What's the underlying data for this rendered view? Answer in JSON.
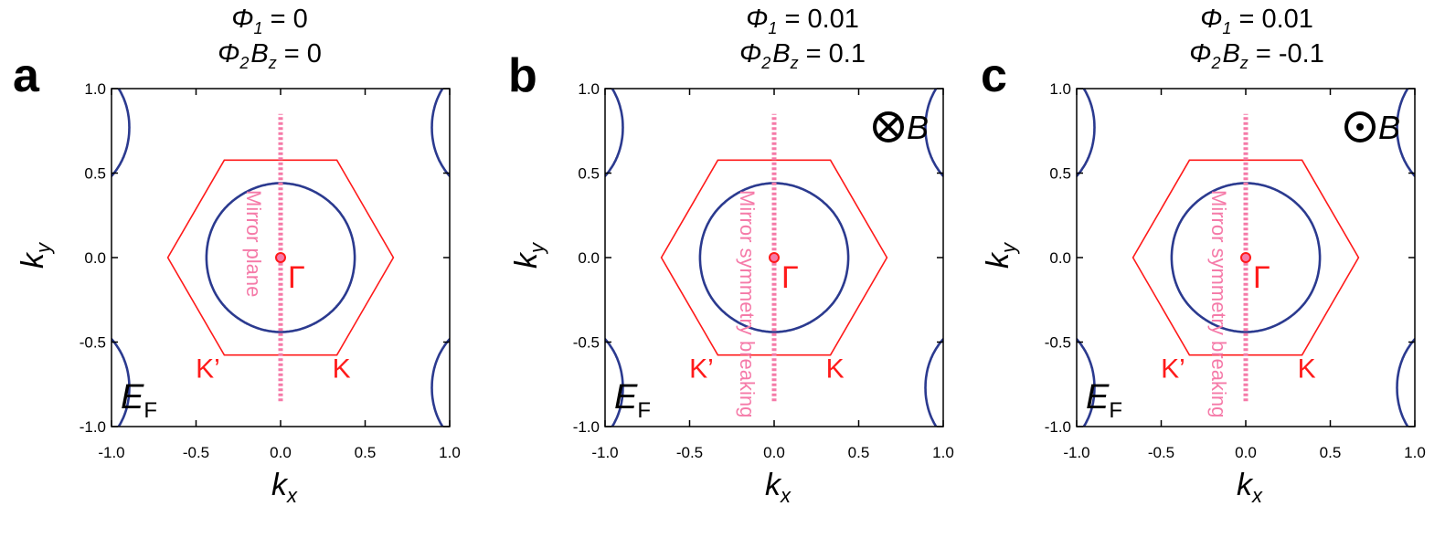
{
  "chart_data": [
    {
      "type": "fermi-surface contour",
      "panel_label": "a",
      "title_lines": [
        {
          "sym": "Φ",
          "sub": "1",
          "eq": "= 0"
        },
        {
          "sym": "Φ",
          "sub": "2",
          "sym2": "B",
          "sub2": "z",
          "eq": "= 0"
        }
      ],
      "xlabel": "k",
      "xlabel_sub": "x",
      "ylabel": "k",
      "ylabel_sub": "y",
      "xlim": [
        -1.0,
        1.0
      ],
      "ylim": [
        -1.0,
        1.0
      ],
      "xticks": [
        "-1.0",
        "-0.5",
        "0.0",
        "0.5",
        "1.0"
      ],
      "yticks": [
        "-1.0",
        "-0.5",
        "0.0",
        "0.5",
        "1.0"
      ],
      "params": {
        "phi1": 0,
        "phi2_bz": 0
      },
      "energy_label": "E",
      "energy_sub": "F",
      "gamma_label": "Γ",
      "k_label": "K",
      "kprime_label": "K’",
      "mirror_text": "Mirror plane",
      "field_symbol": "",
      "field_label": "",
      "hexagon_vertices": [
        [
          0.667,
          0.0
        ],
        [
          0.333,
          0.577
        ],
        [
          -0.333,
          0.577
        ],
        [
          -0.667,
          0.0
        ],
        [
          -0.333,
          -0.577
        ],
        [
          0.333,
          -0.577
        ]
      ],
      "mirror_line_y": [
        -0.85,
        0.85
      ]
    },
    {
      "type": "fermi-surface contour",
      "panel_label": "b",
      "title_lines": [
        {
          "sym": "Φ",
          "sub": "1",
          "eq": "= 0.01"
        },
        {
          "sym": "Φ",
          "sub": "2",
          "sym2": "B",
          "sub2": "z",
          "eq": "= 0.1"
        }
      ],
      "xlabel": "k",
      "xlabel_sub": "x",
      "ylabel": "k",
      "ylabel_sub": "y",
      "xlim": [
        -1.0,
        1.0
      ],
      "ylim": [
        -1.0,
        1.0
      ],
      "xticks": [
        "-1.0",
        "-0.5",
        "0.0",
        "0.5",
        "1.0"
      ],
      "yticks": [
        "-1.0",
        "-0.5",
        "0.0",
        "0.5",
        "1.0"
      ],
      "params": {
        "phi1": 0.01,
        "phi2_bz": 0.1
      },
      "energy_label": "E",
      "energy_sub": "F",
      "gamma_label": "Γ",
      "k_label": "K",
      "kprime_label": "K’",
      "mirror_text": "Mirror symmetry breaking",
      "field_symbol": "⊗",
      "field_label": "B",
      "hexagon_vertices": [
        [
          0.667,
          0.0
        ],
        [
          0.333,
          0.577
        ],
        [
          -0.333,
          0.577
        ],
        [
          -0.667,
          0.0
        ],
        [
          -0.333,
          -0.577
        ],
        [
          0.333,
          -0.577
        ]
      ],
      "mirror_line_y": [
        -0.85,
        0.85
      ]
    },
    {
      "type": "fermi-surface contour",
      "panel_label": "c",
      "title_lines": [
        {
          "sym": "Φ",
          "sub": "1",
          "eq": "= 0.01"
        },
        {
          "sym": "Φ",
          "sub": "2",
          "sym2": "B",
          "sub2": "z",
          "eq": "= -0.1"
        }
      ],
      "xlabel": "k",
      "xlabel_sub": "x",
      "ylabel": "k",
      "ylabel_sub": "y",
      "xlim": [
        -1.0,
        1.0
      ],
      "ylim": [
        -1.0,
        1.0
      ],
      "xticks": [
        "-1.0",
        "-0.5",
        "0.0",
        "0.5",
        "1.0"
      ],
      "yticks": [
        "-1.0",
        "-0.5",
        "0.0",
        "0.5",
        "1.0"
      ],
      "params": {
        "phi1": 0.01,
        "phi2_bz": -0.1
      },
      "energy_label": "E",
      "energy_sub": "F",
      "gamma_label": "Γ",
      "k_label": "K",
      "kprime_label": "K’",
      "mirror_text": "Mirror symmetry breaking",
      "field_symbol": "⊙",
      "field_label": "B",
      "hexagon_vertices": [
        [
          0.667,
          0.0
        ],
        [
          0.333,
          0.577
        ],
        [
          -0.333,
          0.577
        ],
        [
          -0.667,
          0.0
        ],
        [
          -0.333,
          -0.577
        ],
        [
          0.333,
          -0.577
        ]
      ],
      "mirror_line_y": [
        -0.85,
        0.85
      ]
    }
  ],
  "colors": {
    "contour": "#2b3a8f",
    "hexagon": "#ff1a1a",
    "mirror": "#f57aa8",
    "gamma_point": "#ff1a1a",
    "text": "#000000"
  }
}
